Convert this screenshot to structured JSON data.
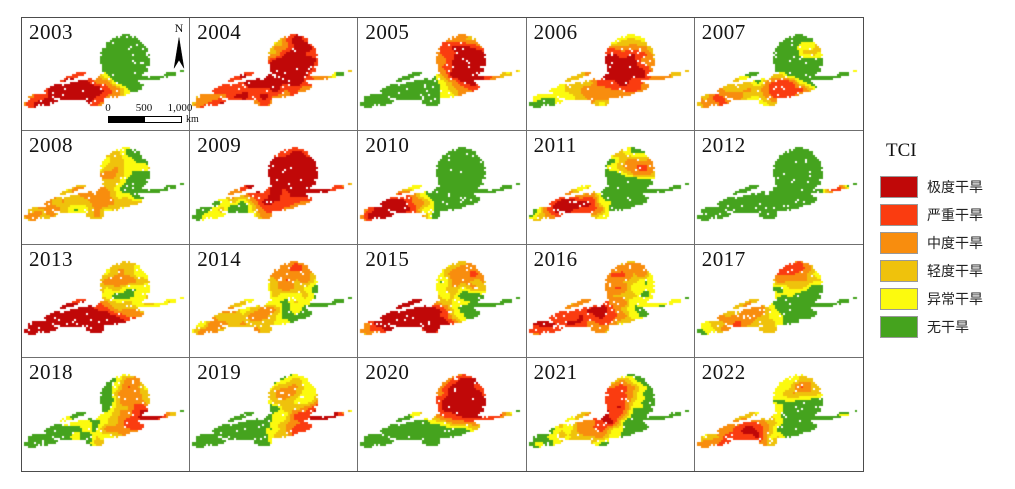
{
  "figure": {
    "background": "#ffffff"
  },
  "grid": {
    "rows": 4,
    "cols": 5,
    "line_color": "#6f6f6f",
    "border_color": "#4c4c4c"
  },
  "inset": {
    "north_label": "N",
    "scalebar": {
      "ticks": [
        "0",
        "500",
        "1,000"
      ],
      "unit": "km"
    }
  },
  "legend": {
    "title": "TCI",
    "items": [
      {
        "label": "极度干旱",
        "color": "#C00808"
      },
      {
        "label": "严重干旱",
        "color": "#FA3C10"
      },
      {
        "label": "中度干旱",
        "color": "#F88D0E"
      },
      {
        "label": "轻度干旱",
        "color": "#EFC20C"
      },
      {
        "label": "异常干旱",
        "color": "#FCFA0E"
      },
      {
        "label": "无干旱",
        "color": "#45A31E"
      }
    ]
  },
  "render": {
    "thresholds": [
      0.33,
      0.43,
      0.53,
      0.66,
      0.8
    ],
    "noise_amp": 0.55
  },
  "years": [
    {
      "label": "2003",
      "base": 0.22,
      "spots": [
        [
          0.14,
          0.7,
          0.16,
          0.62
        ],
        [
          0.32,
          0.64,
          0.12,
          0.38
        ],
        [
          0.47,
          0.63,
          0.12,
          0.3
        ],
        [
          0.6,
          0.36,
          0.2,
          -0.18
        ]
      ]
    },
    {
      "label": "2004",
      "base": 0.42,
      "spots": [
        [
          0.56,
          0.46,
          0.16,
          0.42
        ],
        [
          0.3,
          0.62,
          0.14,
          0.22
        ],
        [
          0.63,
          0.33,
          0.12,
          0.25
        ],
        [
          0.1,
          0.7,
          0.1,
          0.3
        ],
        [
          0.5,
          0.22,
          0.08,
          -0.25
        ]
      ]
    },
    {
      "label": "2005",
      "base": 0.3,
      "spots": [
        [
          0.62,
          0.38,
          0.18,
          0.52
        ],
        [
          0.7,
          0.42,
          0.08,
          0.35
        ],
        [
          0.22,
          0.64,
          0.18,
          -0.45
        ],
        [
          0.1,
          0.7,
          0.12,
          -0.4
        ]
      ]
    },
    {
      "label": "2006",
      "base": 0.4,
      "spots": [
        [
          0.5,
          0.55,
          0.14,
          0.4
        ],
        [
          0.62,
          0.4,
          0.12,
          0.3
        ],
        [
          0.15,
          0.68,
          0.12,
          -0.15
        ]
      ]
    },
    {
      "label": "2007",
      "base": 0.32,
      "spots": [
        [
          0.53,
          0.6,
          0.1,
          0.48
        ],
        [
          0.14,
          0.7,
          0.1,
          0.38
        ],
        [
          0.7,
          0.3,
          0.07,
          0.35
        ],
        [
          0.62,
          0.38,
          0.12,
          -0.2
        ]
      ]
    },
    {
      "label": "2008",
      "base": 0.26,
      "spots": [
        [
          0.45,
          0.6,
          0.13,
          0.32
        ],
        [
          0.6,
          0.3,
          0.1,
          0.18
        ],
        [
          0.12,
          0.7,
          0.1,
          0.22
        ]
      ]
    },
    {
      "label": "2009",
      "base": 0.38,
      "spots": [
        [
          0.61,
          0.34,
          0.2,
          0.58
        ],
        [
          0.4,
          0.6,
          0.12,
          0.25
        ],
        [
          0.2,
          0.66,
          0.14,
          -0.25
        ]
      ]
    },
    {
      "label": "2010",
      "base": 0.2,
      "spots": [
        [
          0.28,
          0.63,
          0.14,
          0.55
        ],
        [
          0.12,
          0.71,
          0.1,
          0.4
        ],
        [
          0.62,
          0.38,
          0.2,
          -0.3
        ]
      ]
    },
    {
      "label": "2011",
      "base": 0.22,
      "spots": [
        [
          0.34,
          0.63,
          0.13,
          0.52
        ],
        [
          0.68,
          0.3,
          0.1,
          0.42
        ],
        [
          0.15,
          0.7,
          0.1,
          0.3
        ],
        [
          0.58,
          0.45,
          0.12,
          -0.2
        ]
      ]
    },
    {
      "label": "2012",
      "base": 0.02,
      "spots": [
        [
          0.8,
          0.51,
          0.06,
          0.35
        ],
        [
          0.86,
          0.49,
          0.04,
          0.3
        ]
      ]
    },
    {
      "label": "2013",
      "base": 0.3,
      "spots": [
        [
          0.16,
          0.7,
          0.18,
          0.58
        ],
        [
          0.5,
          0.68,
          0.16,
          0.42
        ],
        [
          0.33,
          0.62,
          0.1,
          0.35
        ],
        [
          0.6,
          0.28,
          0.1,
          0.28
        ],
        [
          0.62,
          0.45,
          0.1,
          -0.25
        ]
      ]
    },
    {
      "label": "2014",
      "base": 0.28,
      "spots": [
        [
          0.57,
          0.29,
          0.12,
          0.45
        ],
        [
          0.2,
          0.69,
          0.13,
          0.32
        ],
        [
          0.45,
          0.62,
          0.1,
          0.28
        ],
        [
          0.6,
          0.48,
          0.1,
          -0.15
        ]
      ]
    },
    {
      "label": "2015",
      "base": 0.32,
      "spots": [
        [
          0.24,
          0.67,
          0.18,
          0.5
        ],
        [
          0.59,
          0.28,
          0.1,
          0.32
        ],
        [
          0.45,
          0.64,
          0.12,
          0.3
        ],
        [
          0.63,
          0.45,
          0.1,
          -0.18
        ]
      ]
    },
    {
      "label": "2016",
      "base": 0.32,
      "spots": [
        [
          0.14,
          0.68,
          0.14,
          0.52
        ],
        [
          0.48,
          0.6,
          0.09,
          0.52
        ],
        [
          0.57,
          0.3,
          0.12,
          0.38
        ],
        [
          0.66,
          0.45,
          0.12,
          -0.28
        ]
      ]
    },
    {
      "label": "2017",
      "base": 0.28,
      "spots": [
        [
          0.57,
          0.27,
          0.12,
          0.48
        ],
        [
          0.2,
          0.68,
          0.11,
          0.32
        ],
        [
          0.4,
          0.62,
          0.1,
          0.25
        ],
        [
          0.68,
          0.48,
          0.14,
          -0.3
        ]
      ]
    },
    {
      "label": "2018",
      "base": 0.25,
      "spots": [
        [
          0.6,
          0.26,
          0.09,
          0.4
        ],
        [
          0.6,
          0.58,
          0.11,
          0.32
        ],
        [
          0.8,
          0.51,
          0.09,
          0.42
        ],
        [
          0.3,
          0.64,
          0.1,
          0.15
        ],
        [
          0.5,
          0.4,
          0.12,
          -0.15
        ]
      ]
    },
    {
      "label": "2019",
      "base": 0.22,
      "spots": [
        [
          0.63,
          0.62,
          0.09,
          0.48
        ],
        [
          0.82,
          0.5,
          0.09,
          0.6
        ],
        [
          0.57,
          0.27,
          0.08,
          0.32
        ],
        [
          0.3,
          0.63,
          0.12,
          -0.1
        ]
      ]
    },
    {
      "label": "2020",
      "base": 0.26,
      "spots": [
        [
          0.64,
          0.32,
          0.15,
          0.58
        ],
        [
          0.52,
          0.45,
          0.1,
          0.3
        ],
        [
          0.25,
          0.65,
          0.16,
          -0.28
        ],
        [
          0.8,
          0.51,
          0.08,
          0.25
        ]
      ]
    },
    {
      "label": "2021",
      "base": 0.26,
      "spots": [
        [
          0.55,
          0.37,
          0.11,
          0.48
        ],
        [
          0.32,
          0.6,
          0.11,
          0.28
        ],
        [
          0.45,
          0.55,
          0.08,
          0.3
        ],
        [
          0.68,
          0.5,
          0.12,
          -0.2
        ]
      ]
    },
    {
      "label": "2022",
      "base": 0.25,
      "spots": [
        [
          0.34,
          0.62,
          0.14,
          0.5
        ],
        [
          0.62,
          0.24,
          0.09,
          0.3
        ],
        [
          0.68,
          0.48,
          0.12,
          -0.32
        ],
        [
          0.15,
          0.7,
          0.1,
          0.35
        ]
      ]
    }
  ]
}
